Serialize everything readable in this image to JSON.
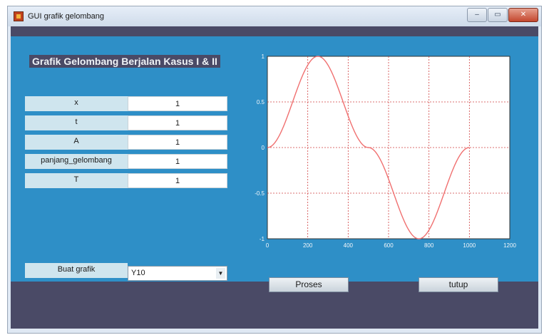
{
  "window": {
    "title": "GUI grafik gelombang",
    "controls": [
      "–",
      "▭",
      "✕"
    ]
  },
  "panel": {
    "header": "Grafik Gelombang Berjalan Kasus I & II",
    "params": [
      {
        "label": "x",
        "value": "1"
      },
      {
        "label": "t",
        "value": "1"
      },
      {
        "label": "A",
        "value": "1"
      },
      {
        "label": "panjang_gelombang",
        "value": "1"
      },
      {
        "label": "T",
        "value": "1"
      }
    ],
    "plot_select": {
      "label": "Buat grafik",
      "value": "Y10"
    }
  },
  "buttons": {
    "proses": "Proses",
    "tutup": "tutup"
  },
  "colors": {
    "panel_bg": "#2e8fc7",
    "dark_bg": "#4a4a66",
    "curve": "#f07070",
    "grid": "#d04040"
  },
  "chart_data": {
    "type": "line",
    "title": "",
    "xlabel": "",
    "ylabel": "",
    "xlim": [
      0,
      1200
    ],
    "ylim": [
      -1,
      1
    ],
    "x_ticks": [
      "0",
      "200",
      "400",
      "600",
      "800",
      "1000",
      "1200"
    ],
    "y_ticks": [
      "1",
      "0.5",
      "0",
      "-0.5",
      "-1"
    ],
    "grid": true,
    "series": [
      {
        "color": "#f07070",
        "x": [
          0,
          250,
          500,
          750,
          1000
        ],
        "y": [
          0,
          1,
          0,
          -1,
          0
        ]
      }
    ]
  }
}
